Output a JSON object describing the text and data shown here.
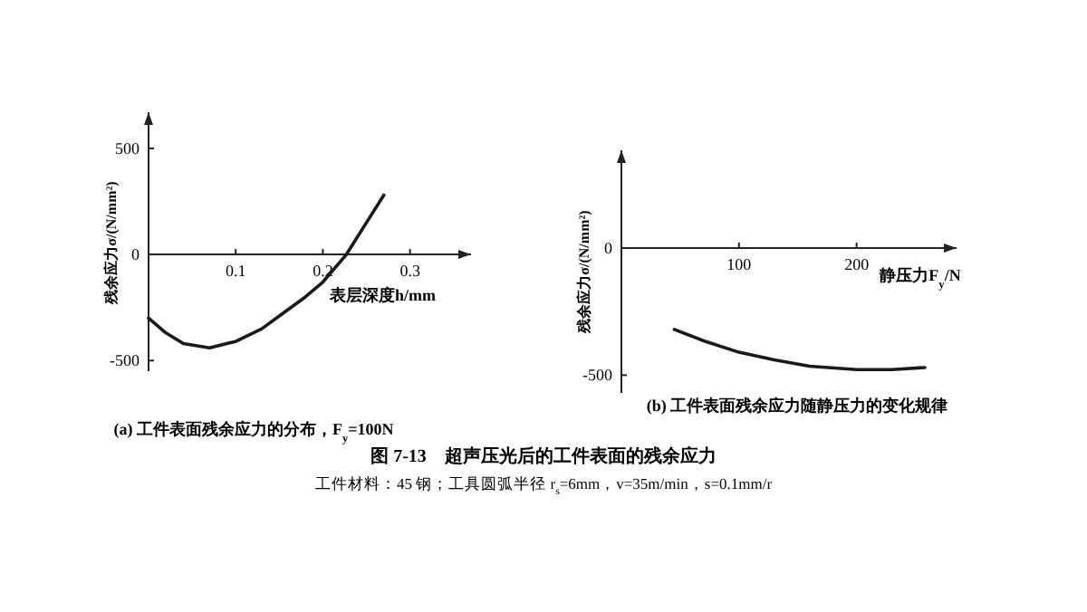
{
  "chart_data": [
    {
      "type": "line",
      "title": "(a) 工件表面残余应力的分布，F$_{y}$=100N",
      "xlabel": "表层深度h/mm",
      "ylabel": "残余应力σ/(N/mm²)",
      "x": [
        0,
        0.02,
        0.04,
        0.07,
        0.1,
        0.13,
        0.15,
        0.18,
        0.2,
        0.227,
        0.25,
        0.27
      ],
      "values": [
        -300,
        -370,
        -420,
        -440,
        -410,
        -350,
        -290,
        -200,
        -130,
        0,
        150,
        280
      ],
      "color": "#1a1a1a",
      "xlim": [
        0,
        0.37
      ],
      "ylim": [
        -550,
        670
      ],
      "xticks": [
        0.1,
        0.2,
        0.3
      ],
      "yticks": [
        -500,
        0,
        500
      ],
      "annotations": [
        "图 7-13　超声压光后的工件表面的残余应力",
        "工件材料：45 钢；工具圆弧半径 r$_{s}$=6mm，v=35m/min，s=0.1mm/r"
      ]
    },
    {
      "type": "line",
      "title": "(b) 工件表面残余应力随静压力的变化规律",
      "xlabel": "静压力F$_{y}$/N",
      "ylabel": "残余应力σ/(N/mm²)",
      "x": [
        45,
        70,
        100,
        130,
        160,
        200,
        230,
        258
      ],
      "values": [
        -320,
        -365,
        -410,
        -440,
        -465,
        -478,
        -478,
        -470
      ],
      "color": "#1a1a1a",
      "xlim": [
        0,
        285
      ],
      "ylim": [
        -570,
        385
      ],
      "xticks": [
        100,
        200
      ],
      "yticks": [
        -500,
        0
      ]
    }
  ]
}
